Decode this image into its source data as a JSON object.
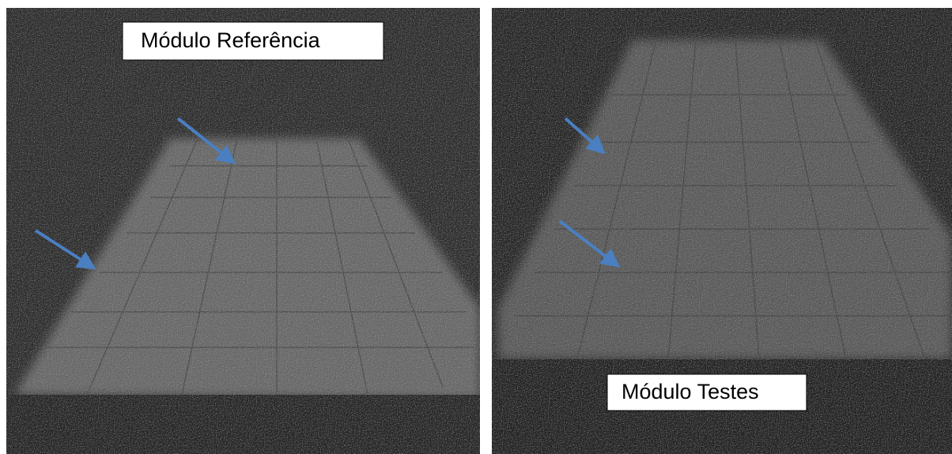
{
  "panels": [
    {
      "label": "Módulo Referência"
    },
    {
      "label": "Módulo Testes"
    }
  ]
}
